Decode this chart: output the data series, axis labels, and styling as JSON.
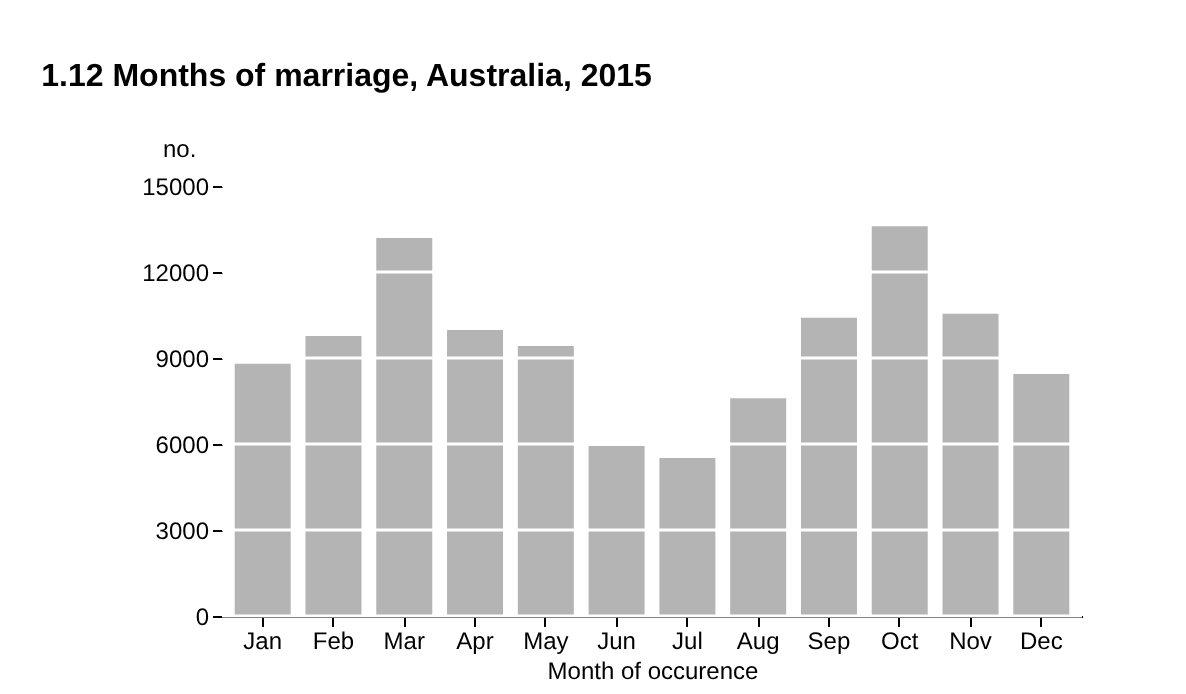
{
  "chart_data": {
    "type": "bar",
    "title": "1.12 Months of marriage, Australia, 2015",
    "xlabel": "Month of occurence",
    "ylabel": "no.",
    "categories": [
      "Jan",
      "Feb",
      "Mar",
      "Apr",
      "May",
      "Jun",
      "Jul",
      "Aug",
      "Sep",
      "Oct",
      "Nov",
      "Dec"
    ],
    "values": [
      8800,
      9770,
      13190,
      9980,
      9420,
      5930,
      5510,
      7600,
      10400,
      13600,
      10540,
      8440
    ],
    "color": "#b4b4b4",
    "ylim": [
      0,
      15000
    ],
    "yticks": [
      0,
      3000,
      6000,
      9000,
      12000,
      15000
    ],
    "grid": "y"
  }
}
